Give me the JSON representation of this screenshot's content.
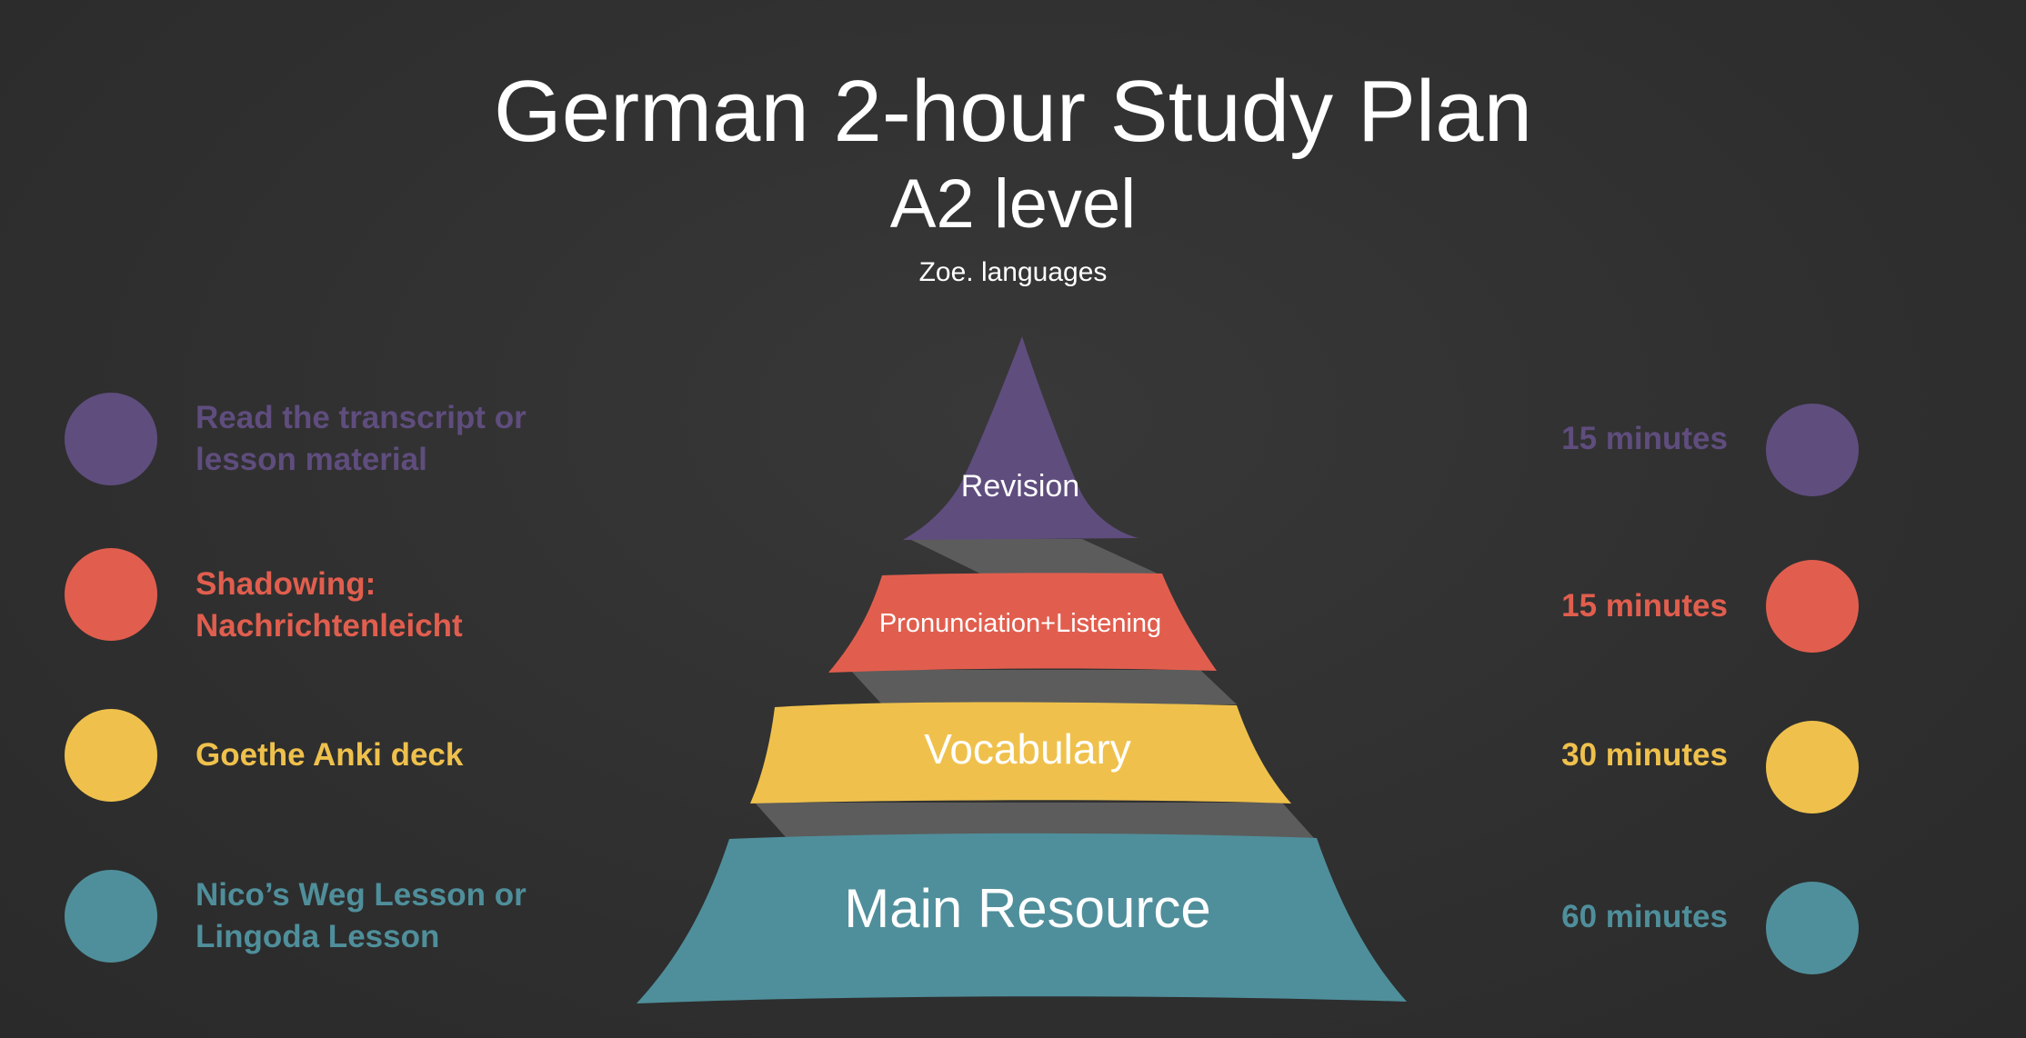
{
  "title": "German 2-hour Study Plan",
  "subtitle": "A2 level",
  "credit": "Zoe. languages",
  "layers": [
    {
      "label": "Revision",
      "activity": "Read the transcript or lesson material",
      "activity_lines": [
        "Read the transcript or",
        "lesson material"
      ],
      "duration": "15 minutes",
      "color": "#5f4d7e"
    },
    {
      "label": "Pronunciation+Listening",
      "activity": "Shadowing: Nachrichtenleicht",
      "activity_lines": [
        "Shadowing:",
        "Nachrichtenleicht"
      ],
      "duration": "15 minutes",
      "color": "#e15e4e"
    },
    {
      "label": "Vocabulary",
      "activity": "Goethe Anki deck",
      "activity_lines": [
        "Goethe Anki deck"
      ],
      "duration": "30 minutes",
      "color": "#efc14c"
    },
    {
      "label": "Main Resource",
      "activity": "Nico’s Weg Lesson or Lingoda Lesson",
      "activity_lines": [
        "Nico’s Weg Lesson or",
        "Lingoda Lesson"
      ],
      "duration": "60 minutes",
      "color": "#4f8f9b"
    }
  ],
  "colors": {
    "background": "#333333",
    "connector": "#5a5a5a",
    "title_text": "#ffffff"
  }
}
